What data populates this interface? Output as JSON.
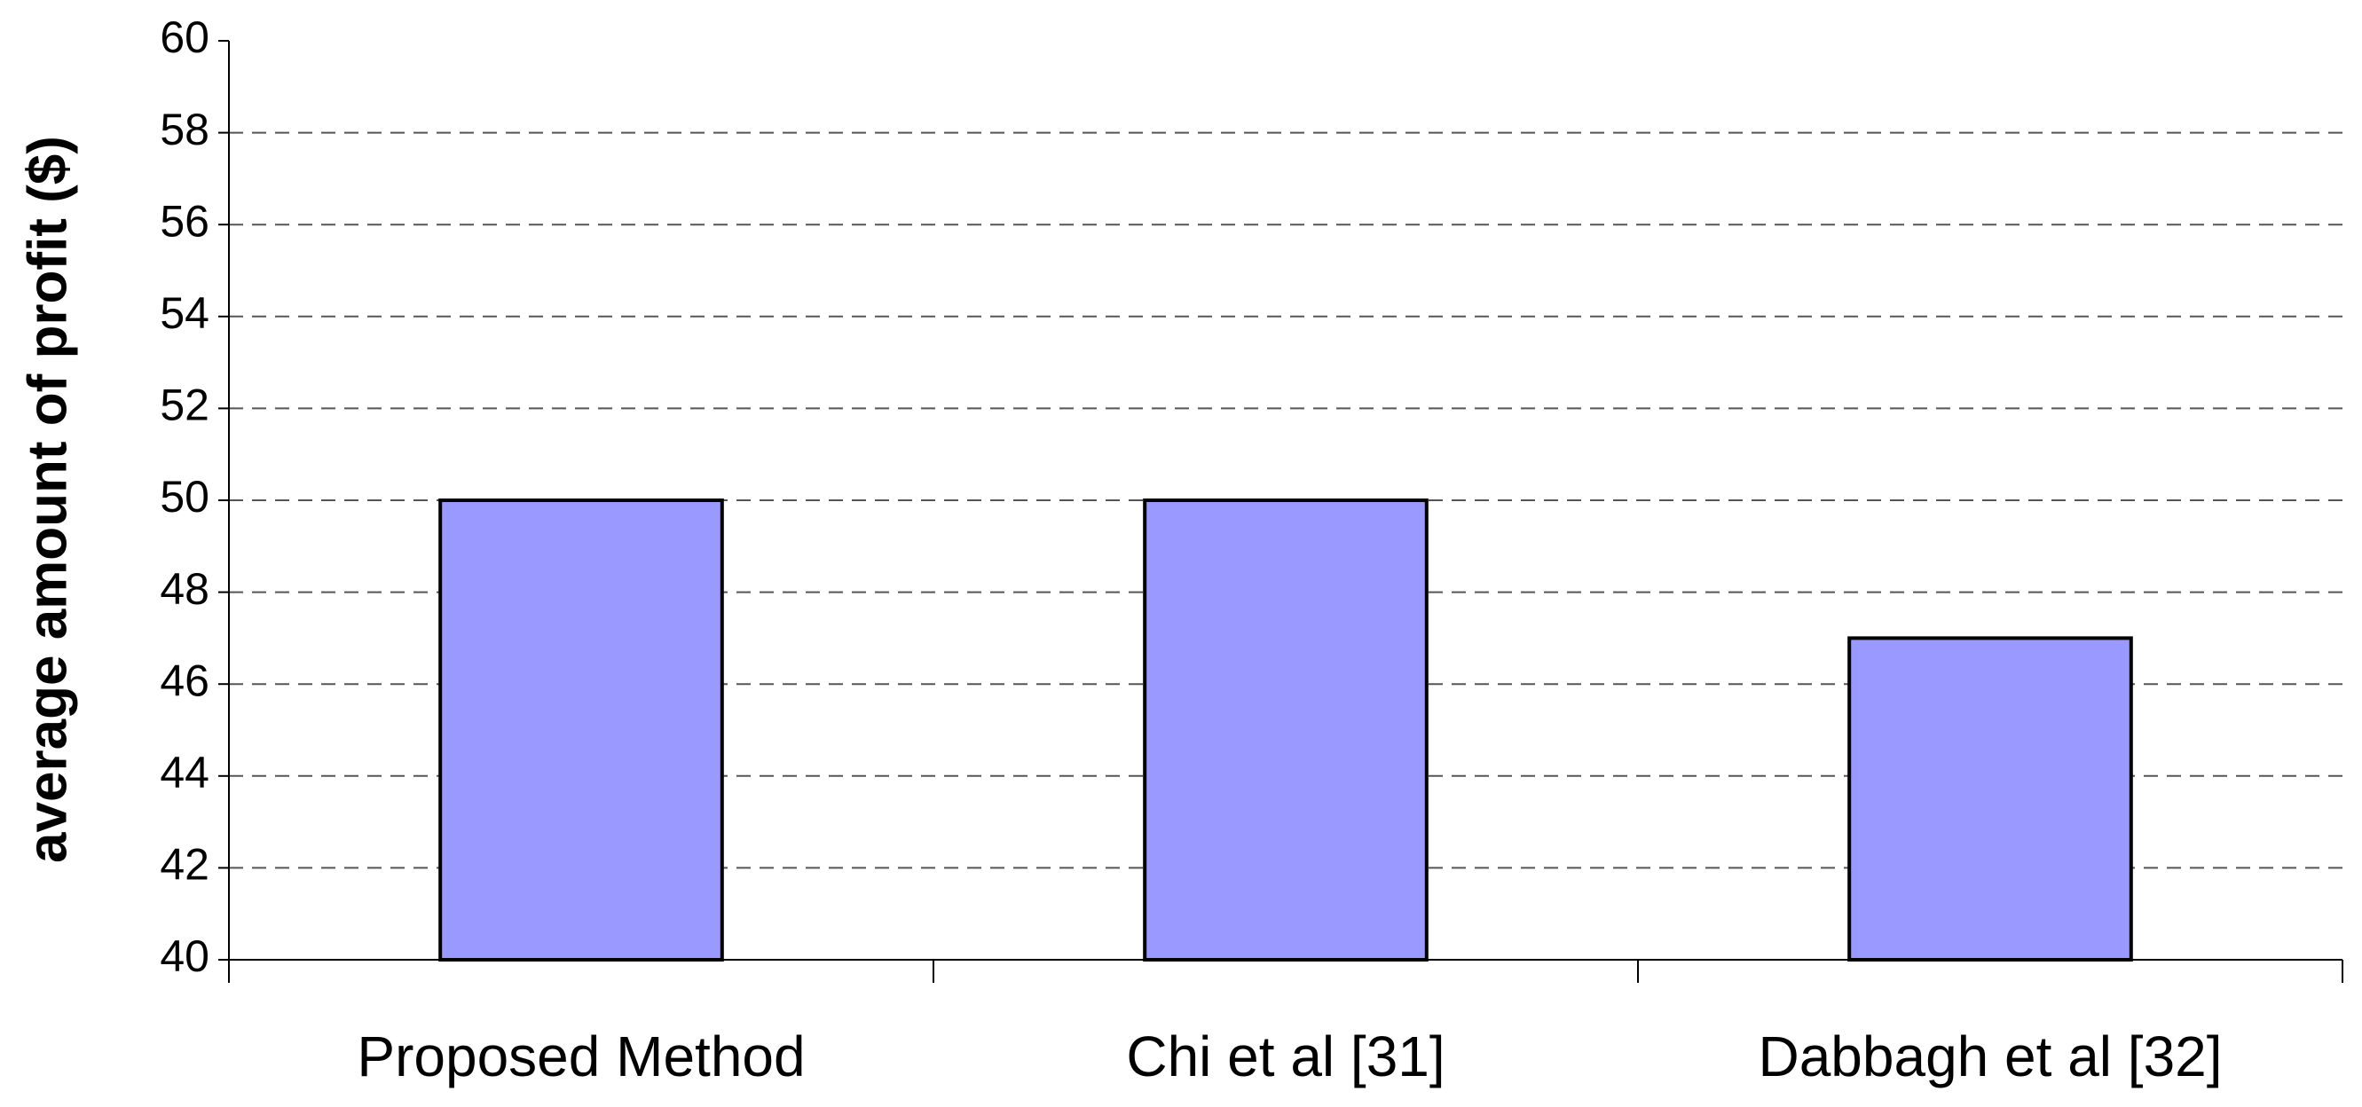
{
  "chart_data": {
    "type": "bar",
    "y_label": "average amount of profit ($)",
    "categories": [
      "Proposed Method",
      "Chi et al [31]",
      "Dabbagh et al [32]"
    ],
    "values": [
      50,
      50,
      47
    ],
    "color": "#9999ff",
    "ylim": [
      40,
      60
    ],
    "yticks": [
      40,
      42,
      44,
      46,
      48,
      50,
      52,
      54,
      56,
      58,
      60
    ],
    "grid": true
  }
}
